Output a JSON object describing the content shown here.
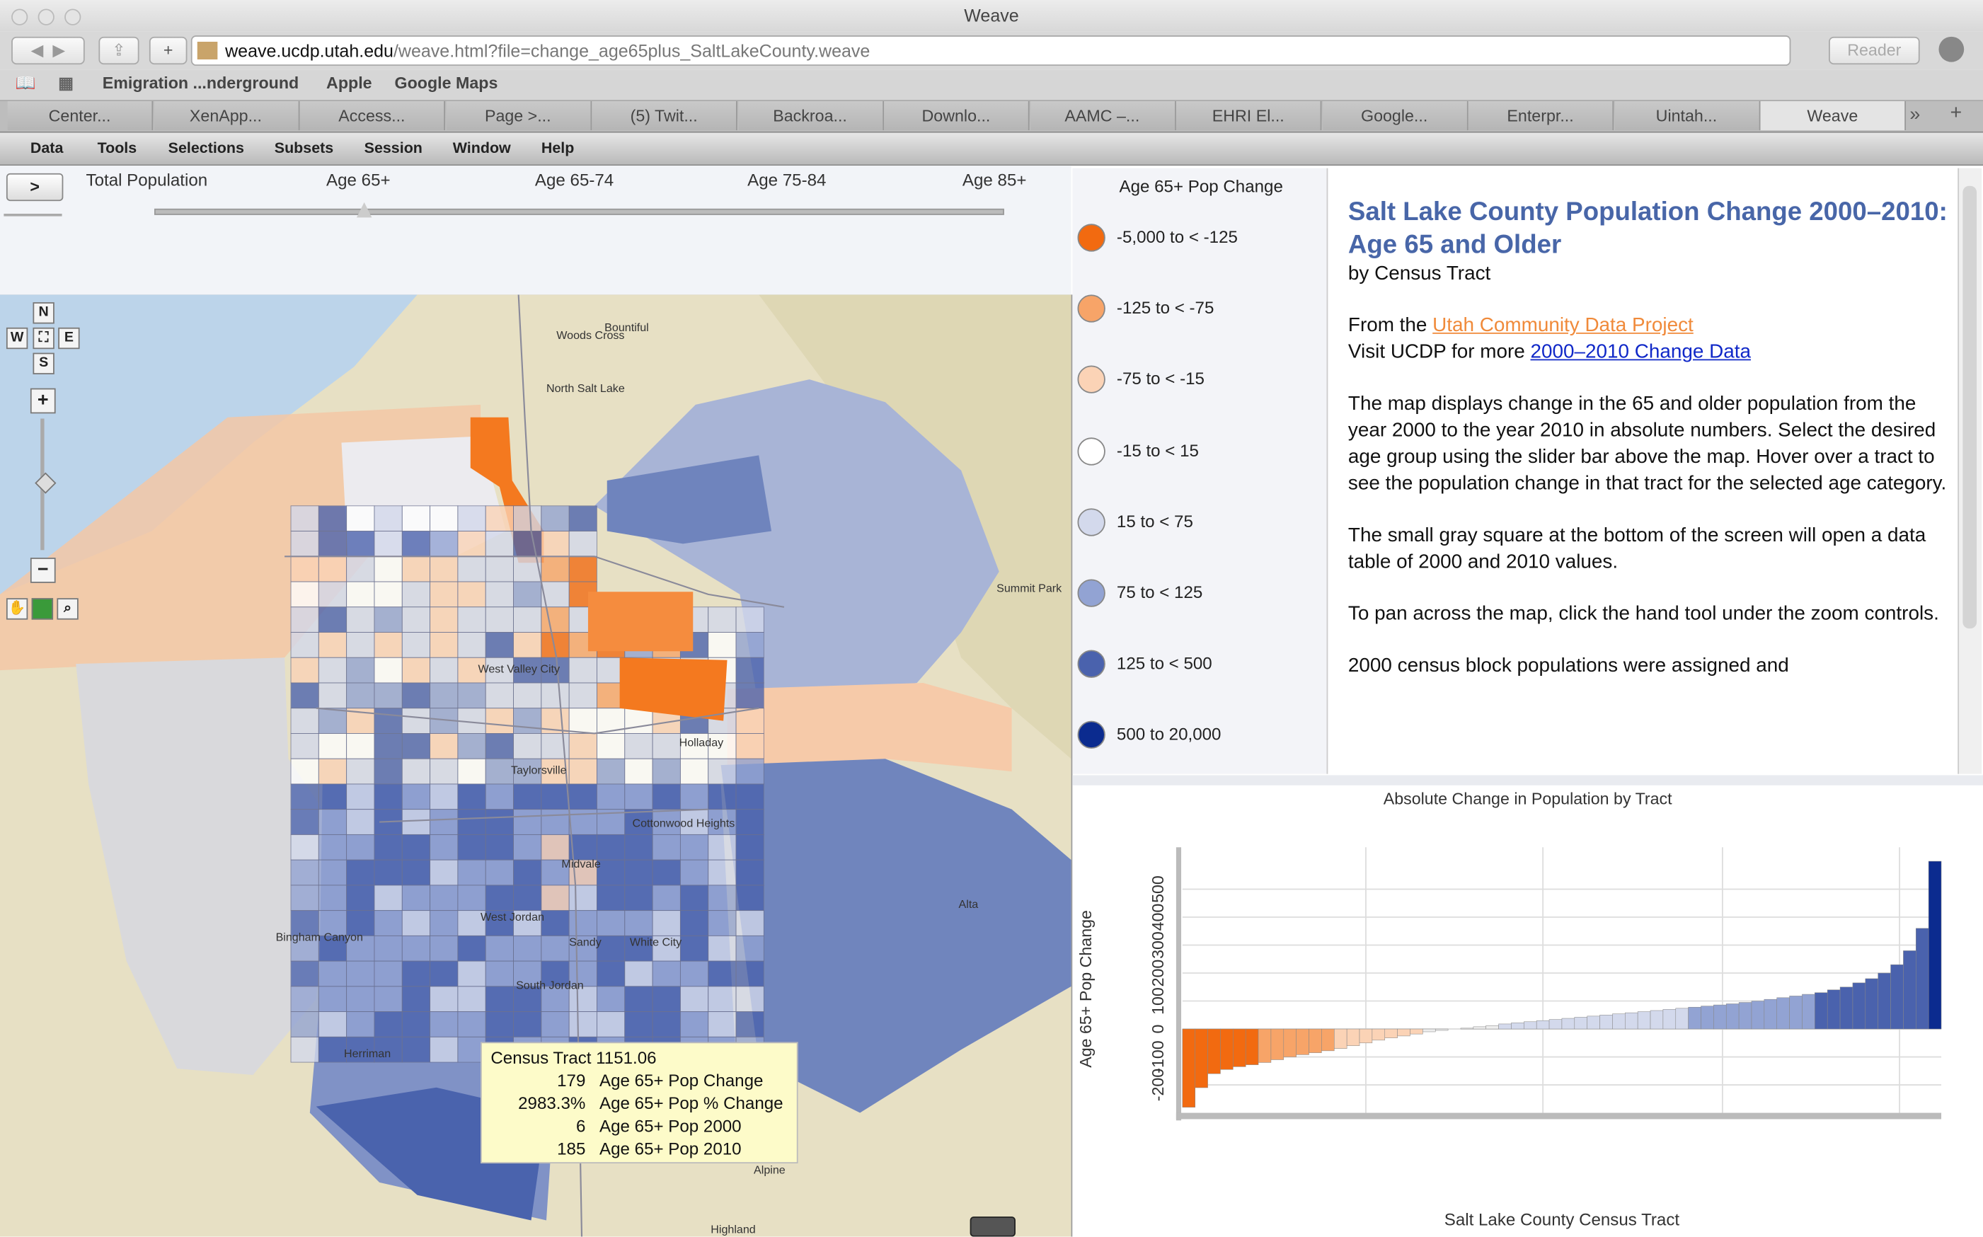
{
  "browser": {
    "window_title": "Weave",
    "url_host": "weave.ucdp.utah.edu",
    "url_path": "/weave.html?file=change_age65plus_SaltLakeCounty.weave",
    "reader": "Reader",
    "bookmarks": [
      "Emigration ...nderground",
      "Apple",
      "Google Maps"
    ],
    "tabs": [
      "Center...",
      "XenApp...",
      "Access...",
      "Page >...",
      "(5) Twit...",
      "Backroa...",
      "Downlo...",
      "AAMC –...",
      "EHRI El...",
      "Google...",
      "Enterpr...",
      "Uintah...",
      "Weave"
    ]
  },
  "menu": [
    "Data",
    "Tools",
    "Selections",
    "Subsets",
    "Session",
    "Window",
    "Help"
  ],
  "slider": {
    "button": ">",
    "labels": [
      "Total Population",
      "Age 65+",
      "Age 65-74",
      "Age 75-84",
      "Age 85+"
    ]
  },
  "map": {
    "compass": [
      "N",
      "W",
      "E",
      "S"
    ],
    "labels": [
      "Bountiful",
      "Woods Cross",
      "North Salt Lake",
      "West Valley City",
      "Taylorsville",
      "Holladay",
      "Cottonwood Heights",
      "Midvale",
      "Sandy",
      "White City",
      "West Jordan",
      "South Jordan",
      "Bingham Canyon",
      "Herriman",
      "Alta",
      "Summit Park",
      "Alpine",
      "Highland"
    ]
  },
  "tooltip": {
    "title": "Census Tract 1151.06",
    "rows": [
      {
        "value": 179,
        "label": "Age 65+ Pop Change"
      },
      {
        "value": "2983.3%",
        "label": "Age 65+ Pop % Change"
      },
      {
        "value": 6,
        "label": "Age 65+ Pop 2000"
      },
      {
        "value": 185,
        "label": "Age 65+ Pop 2010"
      }
    ]
  },
  "legend": {
    "title": "Age 65+ Pop Change",
    "items": [
      {
        "label": "-5,000 to < -125",
        "color": "#f26a10"
      },
      {
        "label": "-125 to < -75",
        "color": "#f7a468"
      },
      {
        "label": "-75 to < -15",
        "color": "#fbd3b6"
      },
      {
        "label": "-15 to < 15",
        "color": "#ffffff"
      },
      {
        "label": "15 to < 75",
        "color": "#d3d9ec"
      },
      {
        "label": "75 to < 125",
        "color": "#92a3d3"
      },
      {
        "label": "125 to < 500",
        "color": "#4a62ad"
      },
      {
        "label": "500 to 20,000",
        "color": "#0b2b8f"
      }
    ]
  },
  "text_panel": {
    "title": "Salt Lake County Population Change 2000–2010:",
    "title2": "Age 65 and Older",
    "subtitle": "by Census Tract",
    "from": "From the ",
    "from_link": "Utah Community Data Project",
    "visit": "Visit UCDP for more ",
    "visit_link": "2000–2010 Change Data",
    "paragraphs": [
      "The map displays change in the 65 and older population from the year 2000 to the year 2010 in absolute numbers. Select the desired age group using the slider bar above the map.  Hover over a tract to see the population change in that tract for the selected age category.",
      "The small gray square at the bottom of the screen will open a data table of 2000 and 2010 values.",
      "To pan across the map, click the hand tool under the zoom controls.",
      "2000 census block populations were assigned and"
    ]
  },
  "chart_data": {
    "type": "bar",
    "title": "Absolute Change in Population by Tract",
    "y_label": "Age 65+ Pop Change",
    "x_label": "Salt Lake County Census Tract",
    "values": [
      -280,
      -210,
      -160,
      -145,
      -135,
      -128,
      -120,
      -110,
      -100,
      -92,
      -85,
      -78,
      -70,
      -60,
      -50,
      -40,
      -32,
      -25,
      -18,
      -10,
      -5,
      0,
      3,
      8,
      12,
      18,
      22,
      26,
      30,
      34,
      38,
      42,
      46,
      50,
      54,
      58,
      62,
      66,
      70,
      74,
      78,
      82,
      86,
      90,
      95,
      100,
      106,
      112,
      118,
      124,
      130,
      140,
      150,
      165,
      180,
      200,
      230,
      280,
      360,
      600
    ],
    "colors": [
      "#f26a10",
      "#f26a10",
      "#f26a10",
      "#f26a10",
      "#f26a10",
      "#f26a10",
      "#f7a468",
      "#f7a468",
      "#f7a468",
      "#f7a468",
      "#f7a468",
      "#f7a468",
      "#fbd3b6",
      "#fbd3b6",
      "#fbd3b6",
      "#fbd3b6",
      "#fbd3b6",
      "#fbd3b6",
      "#fbd3b6",
      "#eeeeee",
      "#eeeeee",
      "#eeeeee",
      "#eeeeee",
      "#eeeeee",
      "#eeeeee",
      "#d3d9ec",
      "#d3d9ec",
      "#d3d9ec",
      "#d3d9ec",
      "#d3d9ec",
      "#d3d9ec",
      "#d3d9ec",
      "#d3d9ec",
      "#d3d9ec",
      "#d3d9ec",
      "#d3d9ec",
      "#d3d9ec",
      "#d3d9ec",
      "#d3d9ec",
      "#d3d9ec",
      "#92a3d3",
      "#92a3d3",
      "#92a3d3",
      "#92a3d3",
      "#92a3d3",
      "#92a3d3",
      "#92a3d3",
      "#92a3d3",
      "#92a3d3",
      "#92a3d3",
      "#4a62ad",
      "#4a62ad",
      "#4a62ad",
      "#4a62ad",
      "#4a62ad",
      "#4a62ad",
      "#4a62ad",
      "#4a62ad",
      "#4a62ad",
      "#0b2b8f"
    ],
    "ylim": [
      -300,
      650
    ],
    "yticks": [
      -200,
      -100,
      0,
      100,
      200,
      300,
      400,
      500
    ],
    "grid": true
  }
}
